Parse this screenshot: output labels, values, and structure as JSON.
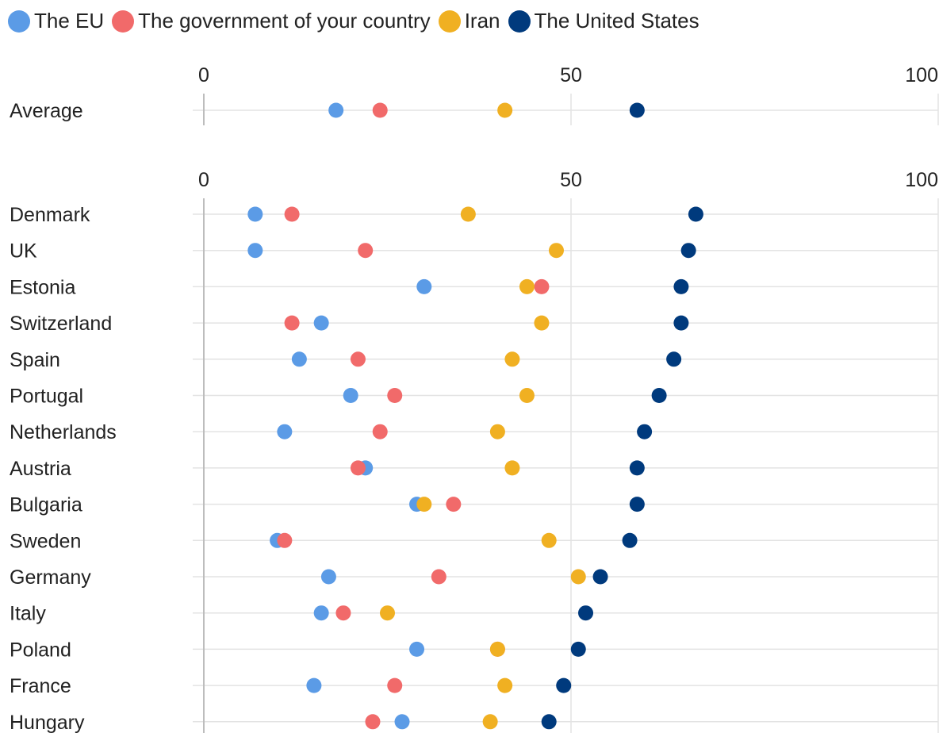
{
  "chart_data": {
    "type": "scatter",
    "title": "",
    "xlabel": "",
    "ylabel": "",
    "xlim": [
      0,
      100
    ],
    "x_ticks": [
      "0",
      "50",
      "100"
    ],
    "grid": true,
    "legend_placement": "top-left",
    "series": [
      {
        "name": "The EU",
        "color": "#5b9be6"
      },
      {
        "name": "The government of your country",
        "color": "#f16a6a"
      },
      {
        "name": "Iran",
        "color": "#f0b022"
      },
      {
        "name": "The United States",
        "color": "#003a7d"
      }
    ],
    "panels": [
      {
        "rows": [
          {
            "label": "Average",
            "values": [
              18,
              24,
              41,
              59
            ]
          }
        ]
      },
      {
        "rows": [
          {
            "label": "Denmark",
            "values": [
              7,
              12,
              36,
              67
            ]
          },
          {
            "label": "UK",
            "values": [
              7,
              22,
              48,
              66
            ]
          },
          {
            "label": "Estonia",
            "values": [
              30,
              46,
              44,
              65
            ]
          },
          {
            "label": "Switzerland",
            "values": [
              16,
              12,
              46,
              65
            ]
          },
          {
            "label": "Spain",
            "values": [
              13,
              21,
              42,
              64
            ]
          },
          {
            "label": "Portugal",
            "values": [
              20,
              26,
              44,
              62
            ]
          },
          {
            "label": "Netherlands",
            "values": [
              11,
              24,
              40,
              60
            ]
          },
          {
            "label": "Austria",
            "values": [
              22,
              21,
              42,
              59
            ]
          },
          {
            "label": "Bulgaria",
            "values": [
              29,
              34,
              30,
              59
            ]
          },
          {
            "label": "Sweden",
            "values": [
              10,
              11,
              47,
              58
            ]
          },
          {
            "label": "Germany",
            "values": [
              17,
              32,
              51,
              54
            ]
          },
          {
            "label": "Italy",
            "values": [
              16,
              19,
              25,
              52
            ]
          },
          {
            "label": "Poland",
            "values": [
              29,
              40,
              40,
              51
            ]
          },
          {
            "label": "France",
            "values": [
              15,
              26,
              41,
              49
            ]
          },
          {
            "label": "Hungary",
            "values": [
              27,
              23,
              39,
              47
            ]
          }
        ]
      }
    ]
  }
}
